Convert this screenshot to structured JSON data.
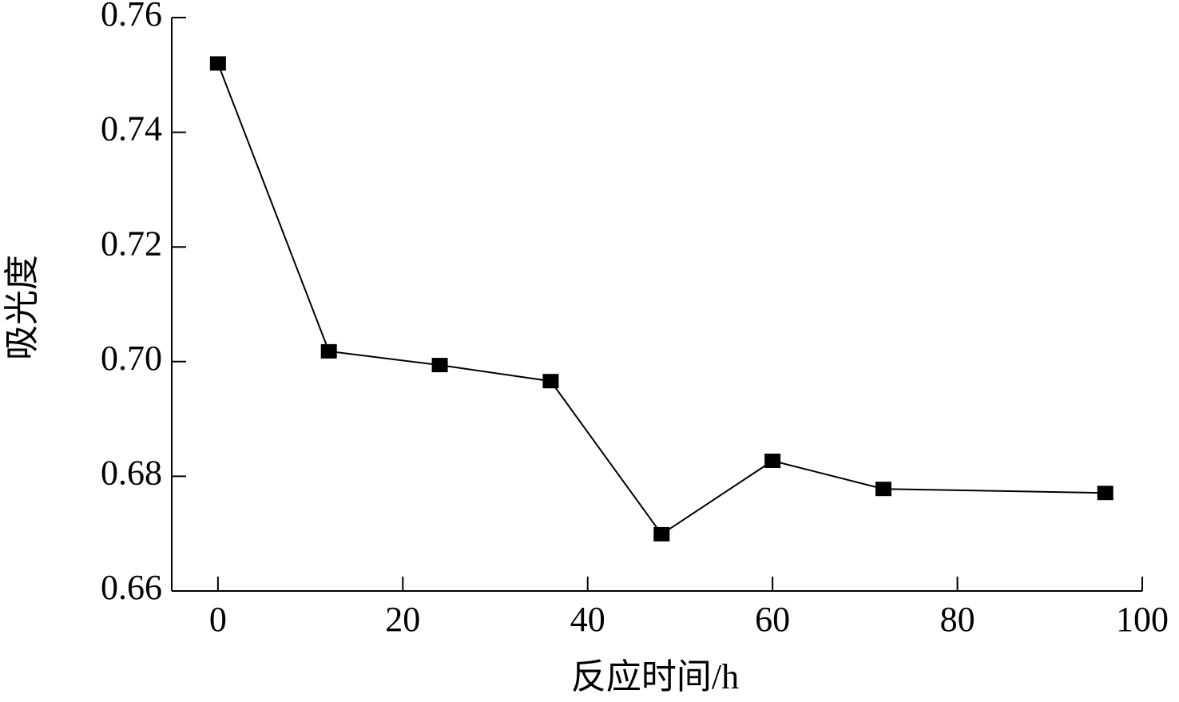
{
  "chart_data": {
    "type": "line",
    "x_label": "反应时间/h",
    "y_label": "吸光度",
    "x": [
      0,
      12,
      24,
      36,
      48,
      60,
      72,
      96
    ],
    "series": [
      {
        "color": "#000000",
        "values": [
          0.752,
          0.7018,
          0.6994,
          0.6966,
          0.6699,
          0.6827,
          0.6778,
          0.6771
        ]
      }
    ],
    "xlim": [
      -5,
      100
    ],
    "xticks": [
      0,
      20,
      40,
      60,
      80,
      100
    ],
    "ylim": [
      0.66,
      0.76
    ],
    "yticks": [
      0.66,
      0.68,
      {
        "value": 0.7,
        "label": "0.70"
      },
      0.72,
      0.74,
      0.76
    ],
    "grid": false
  }
}
